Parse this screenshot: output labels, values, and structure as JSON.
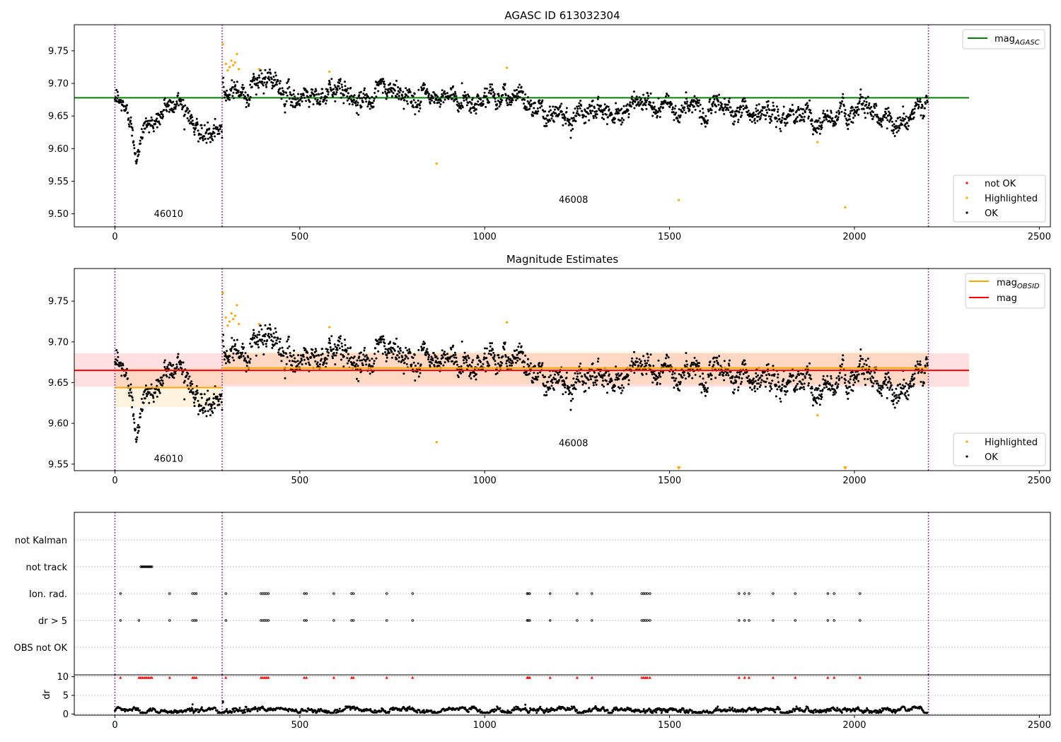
{
  "chart_data": [
    {
      "type": "scatter",
      "title": "AGASC ID 613032304",
      "xlim": [
        -110,
        2530
      ],
      "ylim": [
        9.48,
        9.79
      ],
      "xticks": [
        "0",
        "500",
        "1000",
        "1500",
        "2000",
        "2500"
      ],
      "yticks": [
        "9.50",
        "9.55",
        "9.60",
        "9.65",
        "9.70",
        "9.75"
      ],
      "grid": false,
      "obsid_boundaries": [
        0,
        290,
        2200
      ],
      "obsid_labels": [
        {
          "text": "46010",
          "x": 145,
          "y": 9.495
        },
        {
          "text": "46008",
          "x": 1240,
          "y": 9.517
        }
      ],
      "reference_lines": [
        {
          "name": "mag_AGASC",
          "value": 9.678,
          "x_range": [
            -110,
            2310
          ],
          "color": "#008000"
        }
      ],
      "segments": [
        {
          "x_range": [
            0,
            290
          ],
          "knots": [
            [
              0,
              9.67
            ],
            [
              40,
              9.65
            ],
            [
              55,
              9.605
            ],
            [
              80,
              9.635
            ],
            [
              115,
              9.645
            ],
            [
              145,
              9.665
            ],
            [
              165,
              9.675
            ],
            [
              195,
              9.668
            ],
            [
              215,
              9.64
            ],
            [
              240,
              9.62
            ],
            [
              270,
              9.612
            ],
            [
              288,
              9.62
            ]
          ],
          "noise": 0.011
        },
        {
          "x_range": [
            292,
            2198
          ],
          "knots": [
            [
              292,
              9.705
            ],
            [
              340,
              9.69
            ],
            [
              420,
              9.7
            ],
            [
              470,
              9.68
            ],
            [
              560,
              9.69
            ],
            [
              650,
              9.68
            ],
            [
              750,
              9.685
            ],
            [
              850,
              9.675
            ],
            [
              950,
              9.675
            ],
            [
              1050,
              9.685
            ],
            [
              1100,
              9.68
            ],
            [
              1150,
              9.665
            ],
            [
              1250,
              9.655
            ],
            [
              1350,
              9.665
            ],
            [
              1450,
              9.665
            ],
            [
              1550,
              9.66
            ],
            [
              1650,
              9.665
            ],
            [
              1700,
              9.66
            ],
            [
              1800,
              9.645
            ],
            [
              1850,
              9.655
            ],
            [
              1900,
              9.635
            ],
            [
              2000,
              9.665
            ],
            [
              2050,
              9.665
            ],
            [
              2100,
              9.64
            ],
            [
              2198,
              9.665
            ]
          ],
          "noise": 0.011
        }
      ],
      "highlighted_points": [
        [
          292,
          9.76
        ],
        [
          300,
          9.73
        ],
        [
          305,
          9.72
        ],
        [
          310,
          9.725
        ],
        [
          315,
          9.735
        ],
        [
          320,
          9.728
        ],
        [
          325,
          9.732
        ],
        [
          330,
          9.745
        ],
        [
          335,
          9.722
        ],
        [
          390,
          9.722
        ],
        [
          580,
          9.718
        ],
        [
          870,
          9.577
        ],
        [
          1060,
          9.724
        ],
        [
          1525,
          9.521
        ],
        [
          1900,
          9.61
        ],
        [
          1975,
          9.51
        ]
      ],
      "series": [
        {
          "name": "not OK",
          "color": "#ff0000"
        },
        {
          "name": "Highlighted",
          "color": "#ffa500"
        },
        {
          "name": "OK",
          "color": "#000000"
        }
      ],
      "legend_top": "top-right",
      "legend_bottom": "bottom-right"
    },
    {
      "type": "scatter",
      "title": "Magnitude Estimates",
      "xlim": [
        -110,
        2530
      ],
      "ylim": [
        9.542,
        9.79
      ],
      "xticks": [
        "0",
        "500",
        "1000",
        "1500",
        "2000",
        "2500"
      ],
      "yticks": [
        "9.55",
        "9.60",
        "9.65",
        "9.70",
        "9.75"
      ],
      "grid": false,
      "obsid_boundaries": [
        0,
        290,
        2200
      ],
      "obsid_labels": [
        {
          "text": "46010",
          "x": 145,
          "y": 9.553
        },
        {
          "text": "46008",
          "x": 1240,
          "y": 9.572
        }
      ],
      "mag": {
        "value": 9.665,
        "band": [
          9.645,
          9.686
        ],
        "x_range": [
          -110,
          2310
        ],
        "color": "#ff0000"
      },
      "mag_obsid": [
        {
          "value": 9.644,
          "band": [
            9.62,
            9.668
          ],
          "x_range": [
            0,
            290
          ]
        },
        {
          "value": 9.668,
          "band": [
            9.648,
            9.688
          ],
          "x_range": [
            290,
            2200
          ]
        }
      ],
      "below_range_markers": [
        1525,
        1975
      ],
      "series": [
        {
          "name": "Highlighted",
          "color": "#ffa500"
        },
        {
          "name": "OK",
          "color": "#000000"
        }
      ],
      "legend_top": "top-right",
      "legend_bottom": "bottom-right"
    },
    {
      "type": "scatter",
      "xlim": [
        -110,
        2530
      ],
      "xticks": [
        "0",
        "500",
        "1000",
        "1500",
        "2000",
        "2500"
      ],
      "flag_categories": [
        "not Kalman",
        "not track",
        "Ion. rad.",
        "dr > 5",
        "OBS not OK"
      ],
      "obsid_boundaries": [
        0,
        290,
        2200
      ],
      "not_track_x": [
        [
          70,
          100
        ]
      ],
      "ion_rad_x": [
        15,
        148,
        210,
        215,
        220,
        300,
        395,
        400,
        405,
        410,
        415,
        512,
        518,
        592,
        640,
        645,
        735,
        805,
        1115,
        1118,
        1122,
        1177,
        1250,
        1290,
        1425,
        1430,
        1435,
        1440,
        1447,
        1688,
        1703,
        1715,
        1780,
        1840,
        1928,
        1945,
        2015
      ],
      "dr_over_5_x": [
        15,
        65,
        148,
        210,
        215,
        220,
        300,
        395,
        400,
        405,
        410,
        415,
        512,
        518,
        592,
        640,
        645,
        735,
        805,
        1115,
        1118,
        1122,
        1177,
        1250,
        1290,
        1425,
        1430,
        1435,
        1440,
        1447,
        1688,
        1703,
        1715,
        1780,
        1840,
        1928,
        1945,
        2015
      ],
      "dr_clipped_x": [
        15,
        65,
        70,
        75,
        80,
        85,
        90,
        95,
        100,
        148,
        210,
        215,
        220,
        300,
        395,
        400,
        405,
        410,
        415,
        512,
        518,
        592,
        640,
        645,
        735,
        805,
        1115,
        1118,
        1122,
        1177,
        1250,
        1290,
        1425,
        1430,
        1435,
        1440,
        1447,
        1688,
        1703,
        1715,
        1780,
        1840,
        1928,
        1945,
        2015
      ],
      "dr": {
        "ylabel": "dr",
        "ylim": [
          -0.3,
          10.5
        ],
        "yticks": [
          "0",
          "5",
          "10"
        ],
        "typical_range": [
          0.3,
          2.0
        ],
        "outlier_points": [
          [
            292,
            3.4
          ],
          [
            292,
            3.1
          ],
          [
            210,
            2.6
          ],
          [
            1110,
            2.5
          ],
          [
            1300,
            2.1
          ]
        ]
      }
    }
  ]
}
